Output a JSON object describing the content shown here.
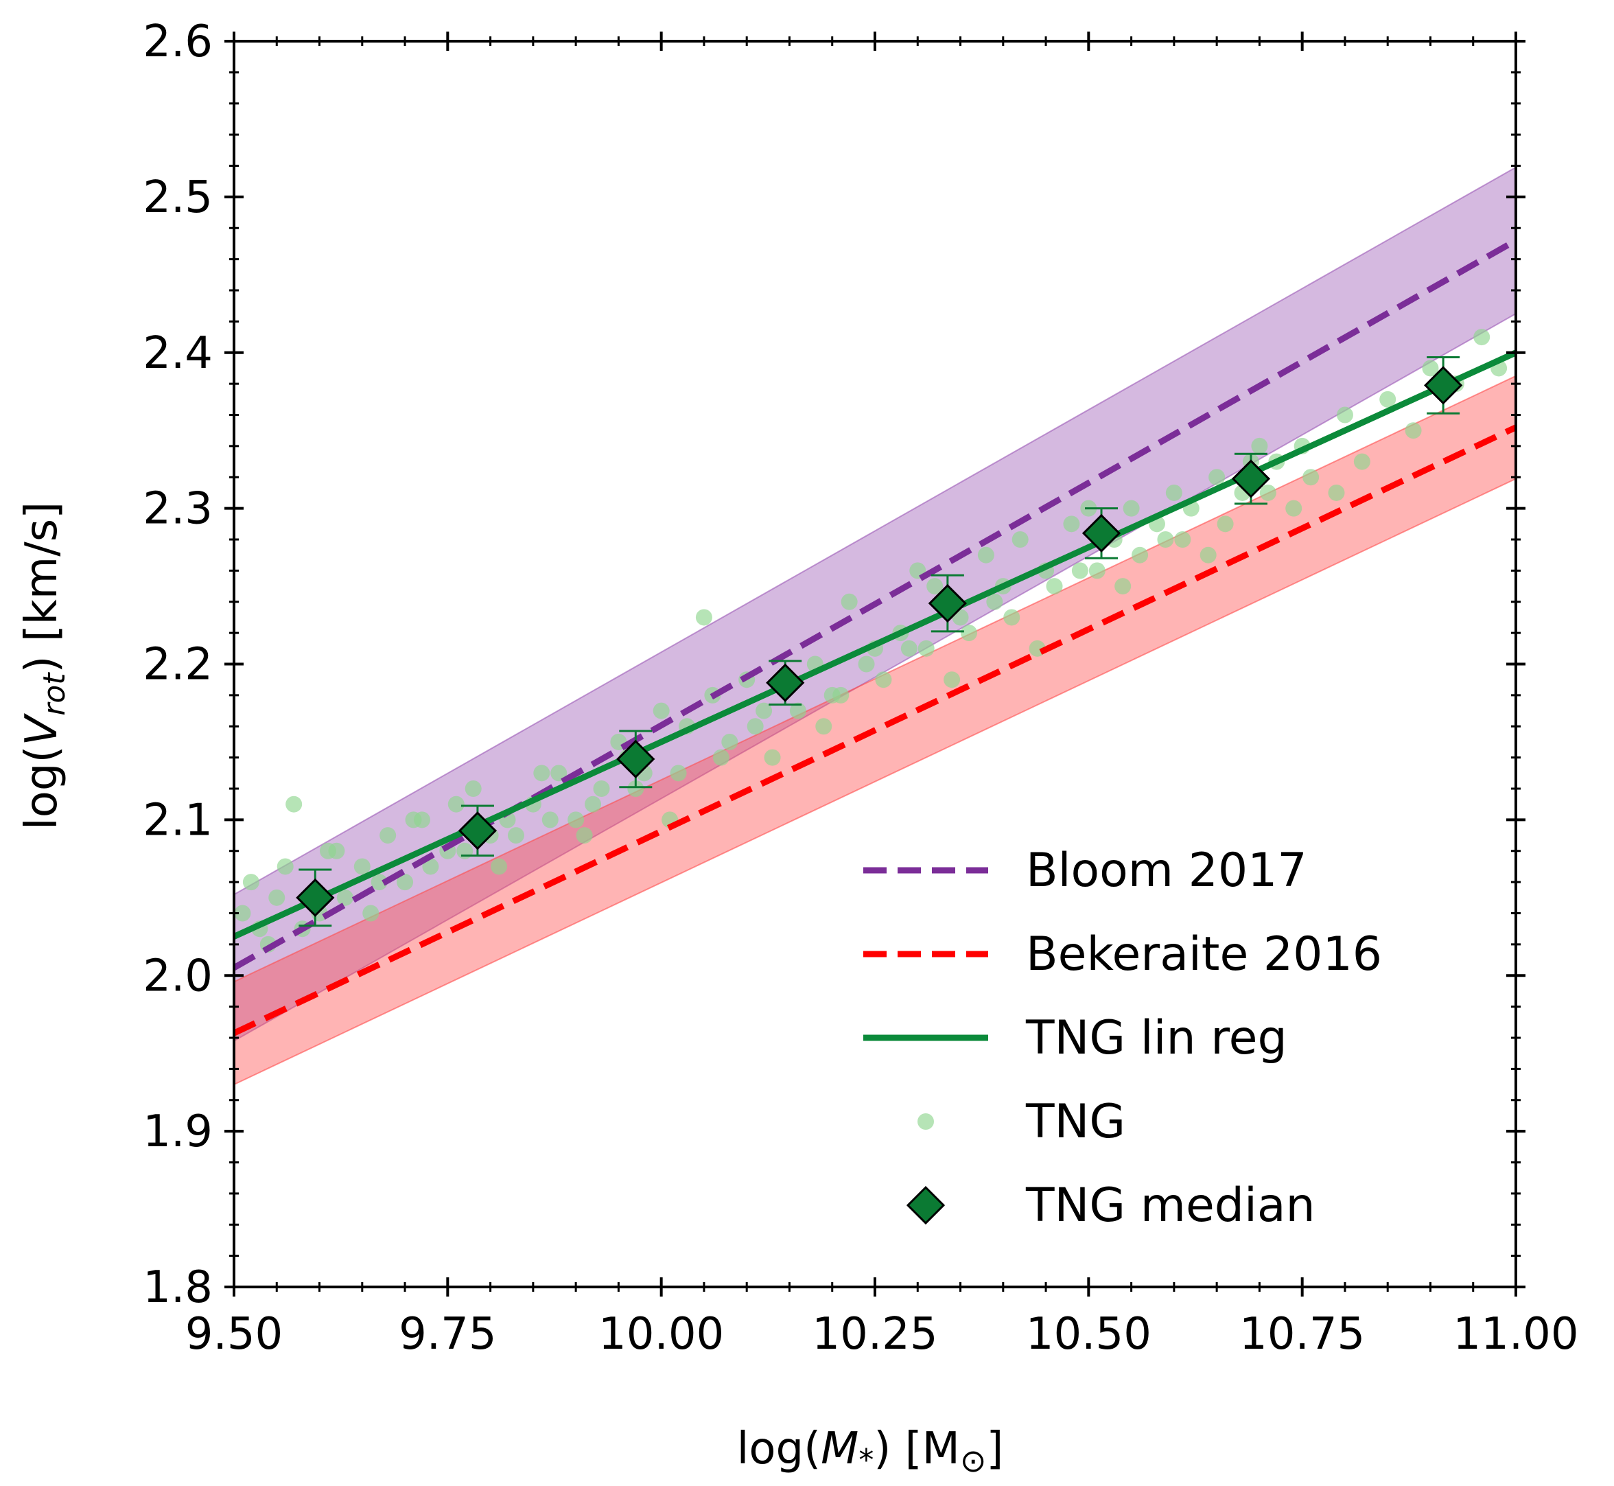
{
  "chart_data": {
    "type": "scatter",
    "xlabel": "log(M_*) [M_⊙]",
    "ylabel": "log(V_rot) [km/s]",
    "xlim": [
      9.5,
      11.0
    ],
    "ylim": [
      1.8,
      2.6
    ],
    "x_ticks": [
      "9.50",
      "9.75",
      "10.00",
      "10.25",
      "10.50",
      "10.75",
      "11.00"
    ],
    "y_ticks": [
      "1.8",
      "1.9",
      "2.0",
      "2.1",
      "2.2",
      "2.3",
      "2.4",
      "2.5",
      "2.6"
    ],
    "grid": false,
    "legend_position": "lower-right",
    "series": [
      {
        "name": "Bloom 2017",
        "kind": "line",
        "style": "dashed",
        "color": "#7b2d98",
        "x": [
          9.5,
          11.0
        ],
        "y": [
          2.005,
          2.472
        ],
        "band_halfwidth": 0.047,
        "band_color": "#9b59b6"
      },
      {
        "name": "Bekeraite 2016",
        "kind": "line",
        "style": "dashed",
        "color": "#ff0000",
        "x": [
          9.5,
          11.0
        ],
        "y": [
          1.963,
          2.352
        ],
        "band_halfwidth": 0.033,
        "band_color": "#ff4d4d"
      },
      {
        "name": "TNG lin reg",
        "kind": "line",
        "style": "solid",
        "color": "#0b8a3a",
        "x": [
          9.5,
          11.0
        ],
        "y": [
          2.025,
          2.4
        ]
      },
      {
        "name": "TNG",
        "kind": "scatter",
        "color": "#8fd68f",
        "x": [
          9.51,
          9.52,
          9.53,
          9.55,
          9.57,
          9.6,
          9.62,
          9.65,
          9.68,
          9.7,
          9.72,
          9.75,
          9.78,
          9.8,
          9.82,
          9.85,
          9.88,
          9.9,
          9.93,
          9.95,
          9.98,
          10.0,
          10.03,
          10.05,
          10.08,
          10.1,
          10.12,
          10.15,
          10.18,
          10.2,
          10.22,
          10.25,
          10.28,
          10.3,
          10.32,
          10.35,
          10.38,
          10.4,
          10.42,
          10.45,
          10.48,
          10.5,
          10.53,
          10.55,
          10.58,
          10.6,
          10.62,
          10.65,
          10.68,
          10.7,
          10.72,
          10.75,
          10.8,
          10.85,
          10.9,
          10.93,
          10.96,
          10.98,
          9.54,
          9.58,
          9.63,
          9.67,
          9.73,
          9.77,
          9.83,
          9.87,
          9.92,
          9.97,
          10.02,
          10.07,
          10.11,
          10.16,
          10.21,
          10.26,
          10.31,
          10.36,
          10.41,
          10.46,
          10.51,
          10.56,
          10.61,
          10.66,
          10.71,
          10.76,
          10.82,
          10.88,
          9.56,
          9.61,
          9.66,
          9.71,
          9.76,
          9.81,
          9.86,
          9.91,
          9.96,
          10.01,
          10.06,
          10.13,
          10.19,
          10.24,
          10.29,
          10.34,
          10.39,
          10.44,
          10.49,
          10.54,
          10.59,
          10.64,
          10.69,
          10.74,
          10.79
        ],
        "y": [
          2.04,
          2.06,
          2.03,
          2.05,
          2.11,
          2.04,
          2.08,
          2.07,
          2.09,
          2.06,
          2.1,
          2.08,
          2.12,
          2.09,
          2.1,
          2.11,
          2.13,
          2.1,
          2.12,
          2.15,
          2.13,
          2.17,
          2.16,
          2.23,
          2.15,
          2.19,
          2.17,
          2.19,
          2.2,
          2.18,
          2.24,
          2.21,
          2.22,
          2.26,
          2.25,
          2.23,
          2.27,
          2.25,
          2.28,
          2.26,
          2.29,
          2.3,
          2.28,
          2.3,
          2.29,
          2.31,
          2.3,
          2.32,
          2.31,
          2.34,
          2.33,
          2.34,
          2.36,
          2.37,
          2.39,
          2.38,
          2.41,
          2.39,
          2.02,
          2.03,
          2.05,
          2.06,
          2.07,
          2.08,
          2.09,
          2.1,
          2.11,
          2.12,
          2.13,
          2.14,
          2.16,
          2.17,
          2.18,
          2.19,
          2.21,
          2.22,
          2.23,
          2.25,
          2.26,
          2.27,
          2.28,
          2.29,
          2.31,
          2.32,
          2.33,
          2.35,
          2.07,
          2.08,
          2.04,
          2.1,
          2.11,
          2.07,
          2.13,
          2.09,
          2.14,
          2.1,
          2.18,
          2.14,
          2.16,
          2.2,
          2.21,
          2.19,
          2.24,
          2.21,
          2.26,
          2.25,
          2.28,
          2.27,
          2.33,
          2.3,
          2.31
        ]
      },
      {
        "name": "TNG median",
        "kind": "errorbar",
        "color": "#0b7a33",
        "x": [
          9.595,
          9.785,
          9.97,
          10.145,
          10.335,
          10.515,
          10.69,
          10.915
        ],
        "y": [
          2.05,
          2.093,
          2.139,
          2.188,
          2.239,
          2.284,
          2.319,
          2.379
        ],
        "yerr": [
          0.018,
          0.016,
          0.018,
          0.014,
          0.018,
          0.016,
          0.016,
          0.018
        ]
      }
    ]
  }
}
